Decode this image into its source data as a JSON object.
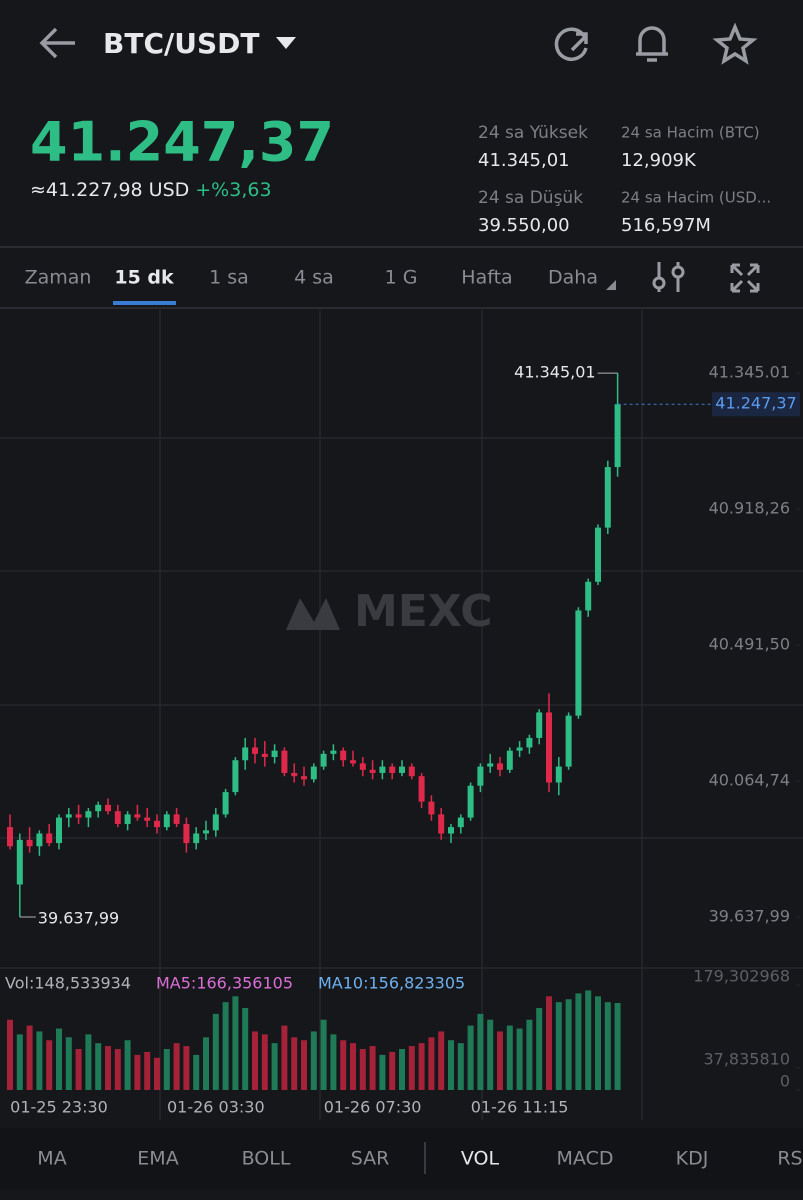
{
  "header": {
    "pair": "BTC/USDT"
  },
  "price": {
    "last": "41.247,37",
    "usd": "≈41.227,98 USD",
    "change": "+%3,63"
  },
  "stats": [
    {
      "label": "24 sa Yüksek",
      "value": "41.345,01"
    },
    {
      "label": "24 sa Hacim (BTC)",
      "value": "12,909K"
    },
    {
      "label": "24 sa Düşük",
      "value": "39.550,00"
    },
    {
      "label": "24 sa Hacim  (USD...",
      "value": "516,597M"
    }
  ],
  "tabs": [
    "Zaman",
    "15 dk",
    "1 sa",
    "4 sa",
    "1 G",
    "Hafta",
    "Daha"
  ],
  "chart_data": {
    "type": "candlestick",
    "watermark": "MEXC",
    "up_color": "#2ebd85",
    "down_color": "#e0294a",
    "categories": [
      null,
      null,
      null,
      null,
      null,
      "01-25 23:30",
      null,
      null,
      null,
      null,
      null,
      null,
      null,
      null,
      null,
      null,
      null,
      null,
      null,
      null,
      null,
      "01-26 03:30",
      null,
      null,
      null,
      null,
      null,
      null,
      null,
      null,
      null,
      null,
      null,
      null,
      null,
      null,
      null,
      "01-26 07:30",
      null,
      null,
      null,
      null,
      null,
      null,
      null,
      null,
      null,
      null,
      null,
      null,
      null,
      null,
      "01-26 11:15",
      null,
      null,
      null,
      null,
      null,
      null,
      null,
      null,
      null,
      null
    ],
    "open": [
      39920,
      39740,
      39880,
      39860,
      39900,
      39870,
      39950,
      39960,
      39950,
      39970,
      39990,
      39970,
      39930,
      39960,
      39950,
      39940,
      39920,
      39960,
      39930,
      39870,
      39900,
      39910,
      39960,
      40030,
      40130,
      40170,
      40150,
      40140,
      40160,
      40090,
      40080,
      40070,
      40110,
      40150,
      40160,
      40130,
      40120,
      40100,
      40090,
      40110,
      40090,
      40110,
      40080,
      40000,
      39960,
      39900,
      39920,
      39950,
      40050,
      40110,
      40120,
      40100,
      40160,
      40170,
      40200,
      40280,
      40060,
      40110,
      40270,
      40600,
      40690,
      40860,
      41050
    ],
    "high": [
      39960,
      39900,
      39920,
      39910,
      39930,
      39960,
      39980,
      39990,
      39980,
      40000,
      40010,
      39990,
      39970,
      39990,
      39980,
      39960,
      39970,
      39980,
      39950,
      39920,
      39940,
      39980,
      40040,
      40140,
      40200,
      40200,
      40190,
      40180,
      40170,
      40120,
      40110,
      40120,
      40160,
      40180,
      40170,
      40160,
      40140,
      40130,
      40130,
      40120,
      40130,
      40120,
      40090,
      40020,
      39980,
      39930,
      39960,
      40060,
      40120,
      40150,
      40140,
      40170,
      40190,
      40210,
      40290,
      40340,
      40140,
      40280,
      40610,
      40700,
      40870,
      41070,
      41345.01
    ],
    "low": [
      39850,
      39637.99,
      39840,
      39830,
      39860,
      39850,
      39920,
      39930,
      39920,
      39950,
      39960,
      39920,
      39910,
      39940,
      39920,
      39900,
      39910,
      39920,
      39840,
      39850,
      39880,
      39890,
      39950,
      40020,
      40100,
      40120,
      40110,
      40120,
      40080,
      40060,
      40050,
      40060,
      40100,
      40130,
      40110,
      40110,
      40080,
      40070,
      40070,
      40070,
      40080,
      40070,
      39980,
      39940,
      39880,
      39870,
      39900,
      39940,
      40030,
      40090,
      40080,
      40090,
      40140,
      40150,
      40180,
      40030,
      40020,
      40100,
      40260,
      40580,
      40680,
      40840,
      41020
    ],
    "close": [
      39860,
      39880,
      39860,
      39900,
      39870,
      39950,
      39960,
      39950,
      39970,
      39990,
      39970,
      39930,
      39960,
      39950,
      39940,
      39920,
      39960,
      39930,
      39870,
      39900,
      39910,
      39960,
      40030,
      40130,
      40170,
      40150,
      40140,
      40160,
      40090,
      40080,
      40070,
      40110,
      40150,
      40160,
      40130,
      40120,
      40100,
      40090,
      40110,
      40090,
      40110,
      40080,
      40000,
      39960,
      39900,
      39920,
      39950,
      40050,
      40110,
      40120,
      40100,
      40160,
      40170,
      40200,
      40280,
      40060,
      40110,
      40270,
      40600,
      40690,
      40860,
      41050,
      41247.37
    ],
    "ylim": [
      39503,
      41543
    ],
    "yticks": [
      {
        "value": 41345.01,
        "label": "41.345.01"
      },
      {
        "value": 40918.26,
        "label": "40.918,26"
      },
      {
        "value": 40491.5,
        "label": "40.491,50"
      },
      {
        "value": 40064.74,
        "label": "40.064,74"
      },
      {
        "value": 39637.99,
        "label": "39.637,99"
      }
    ],
    "high_annotation": {
      "value": 41345.01,
      "label": "41.345,01"
    },
    "low_annotation": {
      "value": 39637.99,
      "label": "39.637,99"
    },
    "last_price": {
      "value": 41247.37,
      "label": "41.247,37"
    },
    "volume": {
      "legend": [
        "Vol:148,533934",
        "MA5:166,356105",
        "MA10:156,823305"
      ],
      "legend_colors": [
        "#b0b2b8",
        "#d96fd6",
        "#6fb1f0"
      ],
      "values": [
        120,
        95,
        110,
        100,
        85,
        105,
        90,
        70,
        95,
        80,
        75,
        70,
        85,
        60,
        65,
        55,
        70,
        80,
        75,
        60,
        90,
        130,
        150,
        160,
        140,
        100,
        95,
        80,
        110,
        90,
        85,
        100,
        120,
        95,
        85,
        80,
        70,
        75,
        60,
        65,
        70,
        75,
        80,
        90,
        100,
        85,
        80,
        110,
        130,
        120,
        100,
        110,
        105,
        120,
        140,
        160,
        150,
        155,
        165,
        170,
        160,
        150,
        148.533934
      ],
      "ylim": [
        0,
        179.302968
      ],
      "yticks": [
        {
          "value": 179.302968,
          "label": "179,302968"
        },
        {
          "value": 37.83581,
          "label": "37,835810"
        },
        0
      ]
    }
  },
  "indicators": [
    "MA",
    "EMA",
    "BOLL",
    "SAR",
    "VOL",
    "MACD",
    "KDJ",
    "RS"
  ]
}
